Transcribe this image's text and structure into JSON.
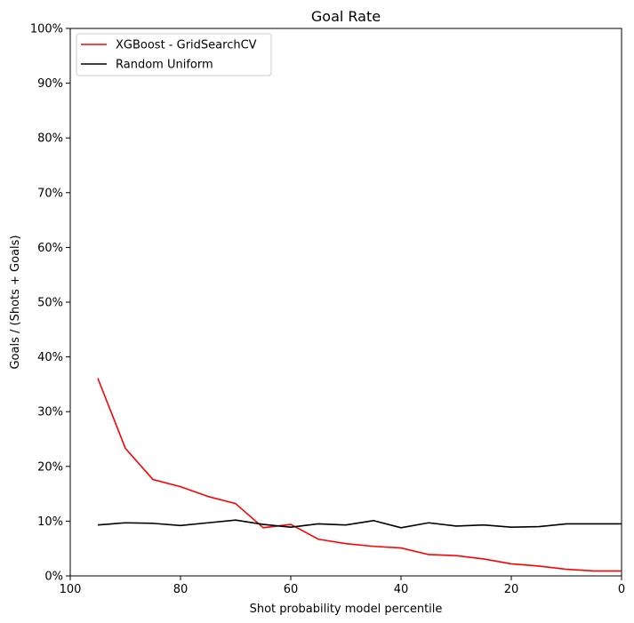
{
  "chart_data": {
    "type": "line",
    "title": "Goal Rate",
    "xlabel": "Shot probability model percentile",
    "ylabel": "Goals / (Shots + Goals)",
    "xlim": [
      100,
      0
    ],
    "ylim": [
      0,
      100
    ],
    "x_ticks": [
      100,
      80,
      60,
      40,
      20,
      0
    ],
    "x_tick_labels": [
      "100",
      "80",
      "60",
      "40",
      "20",
      "0"
    ],
    "y_ticks": [
      0,
      10,
      20,
      30,
      40,
      50,
      60,
      70,
      80,
      90,
      100
    ],
    "y_tick_labels": [
      "0%",
      "10%",
      "20%",
      "30%",
      "40%",
      "50%",
      "60%",
      "70%",
      "80%",
      "90%",
      "100%"
    ],
    "grid": false,
    "legend_position": "top-left",
    "series": [
      {
        "name": "XGBoost - GridSearchCV",
        "color": "#ff0000",
        "x": [
          95,
          90,
          85,
          80,
          75,
          70,
          65,
          60,
          55,
          50,
          45,
          40,
          35,
          30,
          25,
          20,
          15,
          10,
          5,
          0
        ],
        "values": [
          36.1,
          23.3,
          17.6,
          16.3,
          14.5,
          13.2,
          8.8,
          9.4,
          6.7,
          5.9,
          5.4,
          5.1,
          3.9,
          3.7,
          3.1,
          2.2,
          1.8,
          1.2,
          0.9,
          0.9
        ]
      },
      {
        "name": "Random Uniform",
        "color": "#000000",
        "x": [
          95,
          90,
          85,
          80,
          75,
          70,
          65,
          60,
          55,
          50,
          45,
          40,
          35,
          30,
          25,
          20,
          15,
          10,
          5,
          0
        ],
        "values": [
          9.3,
          9.7,
          9.6,
          9.2,
          9.7,
          10.2,
          9.4,
          8.9,
          9.5,
          9.3,
          10.1,
          8.8,
          9.7,
          9.1,
          9.3,
          8.9,
          9.0,
          9.5,
          9.5,
          9.5
        ]
      }
    ]
  }
}
